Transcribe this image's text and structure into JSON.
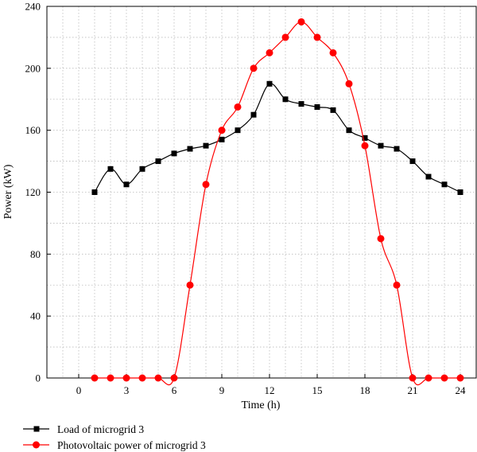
{
  "chart_data": {
    "type": "line",
    "xlabel": "Time (h)",
    "ylabel": "Power (kW)",
    "xlim": [
      -2,
      25
    ],
    "ylim": [
      0,
      240
    ],
    "xticks": [
      0,
      3,
      6,
      9,
      12,
      15,
      18,
      21,
      24
    ],
    "yticks": [
      0,
      40,
      80,
      120,
      160,
      200,
      240
    ],
    "grid": "dotted",
    "legend_position": "bottom-left, below plot",
    "series": [
      {
        "name": "Load of microgrid 3",
        "color": "#000000",
        "marker": "square",
        "x": [
          1,
          2,
          3,
          4,
          5,
          6,
          7,
          8,
          9,
          10,
          11,
          12,
          13,
          14,
          15,
          16,
          17,
          18,
          19,
          20,
          21,
          22,
          23,
          24
        ],
        "values": [
          120,
          135,
          125,
          135,
          140,
          145,
          148,
          150,
          154,
          160,
          170,
          190,
          180,
          177,
          175,
          173,
          160,
          155,
          150,
          148,
          140,
          130,
          125,
          120
        ]
      },
      {
        "name": "Photovoltaic power of microgrid 3",
        "color": "#ff0000",
        "marker": "circle",
        "x": [
          1,
          2,
          3,
          4,
          5,
          6,
          7,
          8,
          9,
          10,
          11,
          12,
          13,
          14,
          15,
          16,
          17,
          18,
          19,
          20,
          21,
          22,
          23,
          24
        ],
        "values": [
          0,
          0,
          0,
          0,
          0,
          0,
          60,
          125,
          160,
          175,
          200,
          210,
          220,
          230,
          220,
          210,
          190,
          150,
          90,
          60,
          0,
          0,
          0,
          0
        ]
      }
    ]
  }
}
